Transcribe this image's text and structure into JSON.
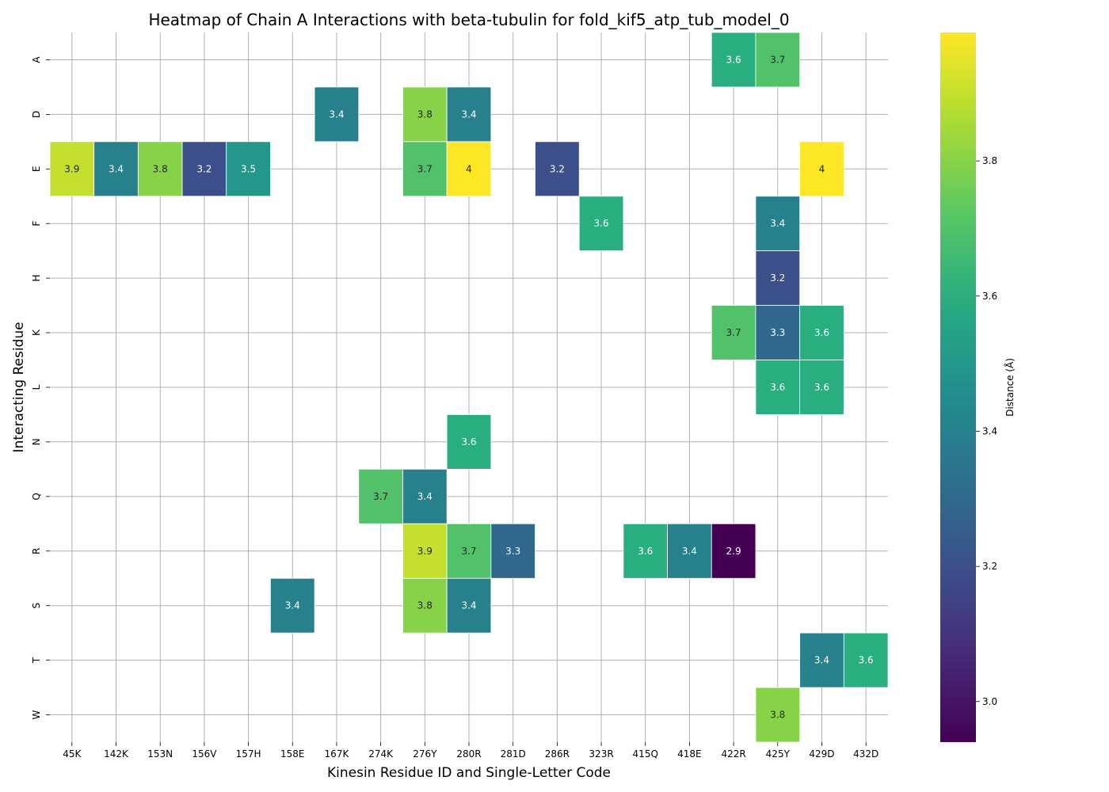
{
  "chart_data": {
    "type": "heatmap",
    "title": "Heatmap of Chain A Interactions with beta-tubulin for fold_kif5_atp_tub_model_0",
    "xlabel": "Kinesin Residue ID and Single-Letter Code",
    "ylabel": "Interacting Residue",
    "x_categories": [
      "45K",
      "142K",
      "153N",
      "156V",
      "157H",
      "158E",
      "167K",
      "274K",
      "276Y",
      "280R",
      "281D",
      "286R",
      "323R",
      "415Q",
      "418E",
      "422R",
      "425Y",
      "429D",
      "432D"
    ],
    "y_categories": [
      "A",
      "D",
      "E",
      "F",
      "H",
      "K",
      "L",
      "N",
      "Q",
      "R",
      "S",
      "T",
      "W"
    ],
    "cells": [
      {
        "x": "422R",
        "y": "A",
        "value": 3.6
      },
      {
        "x": "425Y",
        "y": "A",
        "value": 3.7
      },
      {
        "x": "167K",
        "y": "D",
        "value": 3.4
      },
      {
        "x": "276Y",
        "y": "D",
        "value": 3.8
      },
      {
        "x": "280R",
        "y": "D",
        "value": 3.4
      },
      {
        "x": "45K",
        "y": "E",
        "value": 3.9
      },
      {
        "x": "142K",
        "y": "E",
        "value": 3.4
      },
      {
        "x": "153N",
        "y": "E",
        "value": 3.8
      },
      {
        "x": "156V",
        "y": "E",
        "value": 3.2
      },
      {
        "x": "157H",
        "y": "E",
        "value": 3.5
      },
      {
        "x": "276Y",
        "y": "E",
        "value": 3.7
      },
      {
        "x": "280R",
        "y": "E",
        "value": 4
      },
      {
        "x": "286R",
        "y": "E",
        "value": 3.2
      },
      {
        "x": "429D",
        "y": "E",
        "value": 4
      },
      {
        "x": "323R",
        "y": "F",
        "value": 3.6
      },
      {
        "x": "425Y",
        "y": "F",
        "value": 3.4
      },
      {
        "x": "425Y",
        "y": "H",
        "value": 3.2
      },
      {
        "x": "422R",
        "y": "K",
        "value": 3.7
      },
      {
        "x": "425Y",
        "y": "K",
        "value": 3.3
      },
      {
        "x": "429D",
        "y": "K",
        "value": 3.6
      },
      {
        "x": "425Y",
        "y": "L",
        "value": 3.6
      },
      {
        "x": "429D",
        "y": "L",
        "value": 3.6
      },
      {
        "x": "280R",
        "y": "N",
        "value": 3.6
      },
      {
        "x": "274K",
        "y": "Q",
        "value": 3.7
      },
      {
        "x": "276Y",
        "y": "Q",
        "value": 3.4
      },
      {
        "x": "276Y",
        "y": "R",
        "value": 3.9
      },
      {
        "x": "280R",
        "y": "R",
        "value": 3.7
      },
      {
        "x": "281D",
        "y": "R",
        "value": 3.3
      },
      {
        "x": "415Q",
        "y": "R",
        "value": 3.6
      },
      {
        "x": "418E",
        "y": "R",
        "value": 3.4
      },
      {
        "x": "422R",
        "y": "R",
        "value": 2.9
      },
      {
        "x": "158E",
        "y": "S",
        "value": 3.4
      },
      {
        "x": "276Y",
        "y": "S",
        "value": 3.8
      },
      {
        "x": "280R",
        "y": "S",
        "value": 3.4
      },
      {
        "x": "429D",
        "y": "T",
        "value": 3.4
      },
      {
        "x": "432D",
        "y": "T",
        "value": 3.6
      },
      {
        "x": "425Y",
        "y": "W",
        "value": 3.8
      }
    ],
    "colormap": "viridis",
    "colorbar": {
      "label": "Distance (Å)",
      "range": [
        2.94,
        3.99
      ],
      "ticks": [
        3.0,
        3.2,
        3.4,
        3.6,
        3.8
      ],
      "tick_labels": [
        "3.0",
        "3.2",
        "3.4",
        "3.6",
        "3.8"
      ]
    },
    "grid": true
  }
}
